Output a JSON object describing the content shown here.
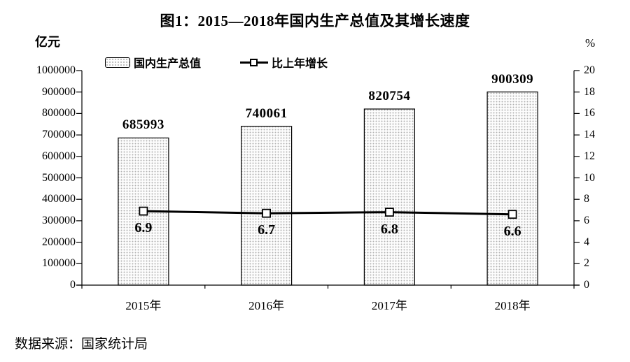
{
  "title": "图1：2015—2018年国内生产总值及其增长速度",
  "source": "数据来源：国家统计局",
  "chart_data": {
    "type": "bar",
    "subtype": "bar-with-line-overlay",
    "categories": [
      "2015年",
      "2016年",
      "2017年",
      "2018年"
    ],
    "series": [
      {
        "name": "国内生产总值",
        "type": "bar",
        "axis": "left",
        "values": [
          685993,
          740061,
          820754,
          900309
        ],
        "labels": [
          "685993",
          "740061",
          "820754",
          "900309"
        ]
      },
      {
        "name": "比上年增长",
        "type": "line",
        "axis": "right",
        "values": [
          6.9,
          6.7,
          6.8,
          6.6
        ],
        "labels": [
          "6.9",
          "6.7",
          "6.8",
          "6.6"
        ]
      }
    ],
    "left_axis": {
      "unit": "亿元",
      "min": 0,
      "max": 1000000,
      "step": 100000,
      "tick_labels": [
        "0",
        "100000",
        "200000",
        "300000",
        "400000",
        "500000",
        "600000",
        "700000",
        "800000",
        "900000",
        "1000000"
      ]
    },
    "right_axis": {
      "unit": "%",
      "min": 0,
      "max": 20,
      "step": 2,
      "tick_labels": [
        "0",
        "2",
        "4",
        "6",
        "8",
        "10",
        "12",
        "14",
        "16",
        "18",
        "20"
      ]
    },
    "legend_position": "top",
    "grid": false,
    "colors": {
      "text": "#000000",
      "axis": "#000000",
      "line": "#000000",
      "marker_fill": "#ffffff",
      "bar_border": "#000000",
      "bar_fill": "#fdfdfd",
      "bar_dot": "#b0b0b0",
      "background": "#ffffff"
    }
  }
}
